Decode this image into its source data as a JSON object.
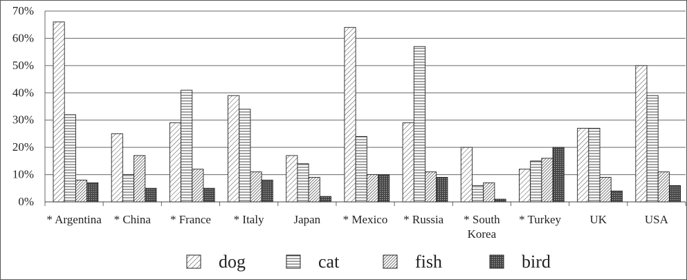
{
  "chart_data": {
    "type": "bar",
    "categories": [
      "* Argentina",
      "* China",
      "* France",
      "* Italy",
      "Japan",
      "* Mexico",
      "* Russia",
      "* South Korea",
      "* Turkey",
      "UK",
      "USA"
    ],
    "category_lines": [
      [
        "* Argentina"
      ],
      [
        "* China"
      ],
      [
        "* France"
      ],
      [
        "* Italy"
      ],
      [
        "Japan"
      ],
      [
        "* Mexico"
      ],
      [
        "* Russia"
      ],
      [
        "* South",
        "Korea"
      ],
      [
        "* Turkey"
      ],
      [
        "UK"
      ],
      [
        "USA"
      ]
    ],
    "series": [
      {
        "name": "dog",
        "pattern": "diag-light",
        "values": [
          66,
          25,
          29,
          39,
          17,
          64,
          29,
          20,
          12,
          27,
          50
        ]
      },
      {
        "name": "cat",
        "pattern": "horizontal",
        "values": [
          32,
          10,
          41,
          34,
          14,
          24,
          57,
          6,
          15,
          27,
          39
        ]
      },
      {
        "name": "fish",
        "pattern": "diag-dense",
        "values": [
          8,
          17,
          12,
          11,
          9,
          10,
          11,
          7,
          16,
          9,
          11
        ]
      },
      {
        "name": "bird",
        "pattern": "cross-dark",
        "values": [
          7,
          5,
          5,
          8,
          2,
          10,
          9,
          1,
          20,
          4,
          6
        ]
      }
    ],
    "yticks": [
      "0%",
      "10%",
      "20%",
      "30%",
      "40%",
      "50%",
      "60%",
      "70%"
    ],
    "ylim": [
      0,
      70
    ],
    "grid": true,
    "legend_position": "bottom",
    "title": "",
    "xlabel": "",
    "ylabel": ""
  }
}
